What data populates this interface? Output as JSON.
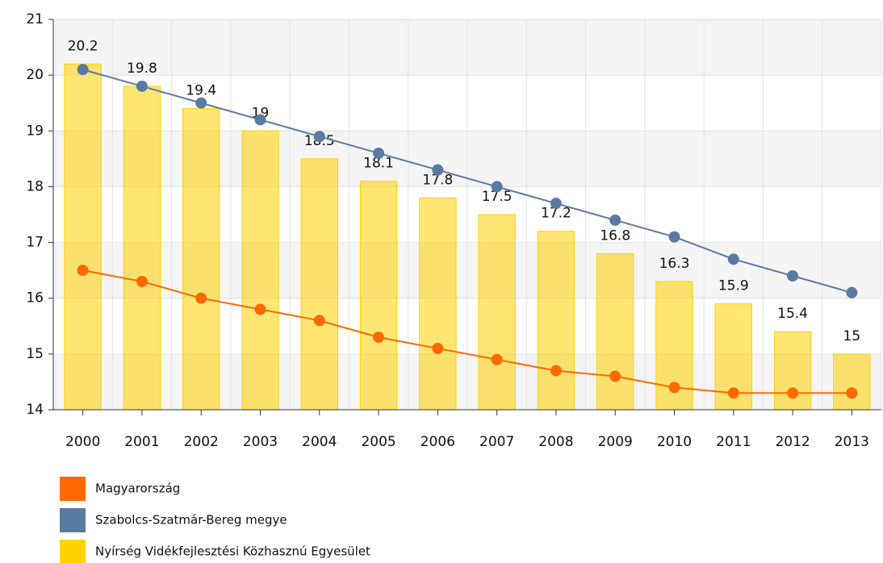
{
  "chart_data": {
    "type": "bar",
    "categories": [
      "2000",
      "2001",
      "2002",
      "2003",
      "2004",
      "2005",
      "2006",
      "2007",
      "2008",
      "2009",
      "2010",
      "2011",
      "2012",
      "2013"
    ],
    "series": [
      {
        "name": "Magyarország",
        "type": "line",
        "color": "#ff6a00",
        "values": [
          16.5,
          16.3,
          16.0,
          15.8,
          15.6,
          15.3,
          15.1,
          14.9,
          14.7,
          14.6,
          14.4,
          14.3,
          14.3,
          14.3
        ]
      },
      {
        "name": "Szabolcs-Szatmár-Bereg megye",
        "type": "line",
        "color": "#5b7aa1",
        "values": [
          20.1,
          19.8,
          19.5,
          19.2,
          18.9,
          18.6,
          18.3,
          18.0,
          17.7,
          17.4,
          17.1,
          16.7,
          16.4,
          16.1
        ]
      },
      {
        "name": "Nyírség Vidékfejlesztési Közhasznú Egyesület",
        "type": "bar",
        "color": "#ffd200",
        "values": [
          20.2,
          19.8,
          19.4,
          19,
          18.5,
          18.1,
          17.8,
          17.5,
          17.2,
          16.8,
          16.3,
          15.9,
          15.4,
          15
        ]
      }
    ],
    "ylim": [
      14,
      21
    ],
    "yticks": [
      14,
      15,
      16,
      17,
      18,
      19,
      20,
      21
    ],
    "grid": true,
    "legend": "bottom-left"
  }
}
